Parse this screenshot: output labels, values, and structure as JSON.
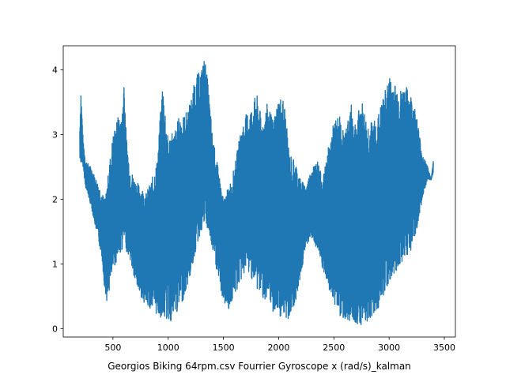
{
  "chart_data": {
    "type": "line",
    "title": "",
    "xlabel": "Georgios Biking 64rpm.csv Fourrier Gyroscope x (rad/s)_kalman",
    "ylabel": "",
    "xlim": [
      50,
      3600
    ],
    "ylim": [
      -0.13,
      4.37
    ],
    "xticks": [
      500,
      1000,
      1500,
      2000,
      2500,
      3000,
      3500
    ],
    "xtick_labels": [
      "500",
      "1000",
      "1500",
      "2000",
      "2500",
      "3000",
      "3500"
    ],
    "yticks": [
      0,
      1,
      2,
      3,
      4
    ],
    "ytick_labels": [
      "0",
      "1",
      "2",
      "3",
      "4"
    ],
    "grid": false,
    "legend": "none",
    "series": [
      {
        "color": "#1f77b4",
        "description": "dense oscillating signal; values sampled as upper envelope and lower envelope",
        "x": [
          200,
          210,
          230,
          250,
          300,
          350,
          400,
          430,
          450,
          500,
          550,
          580,
          600,
          620,
          650,
          700,
          750,
          800,
          850,
          900,
          950,
          1000,
          1030,
          1050,
          1100,
          1150,
          1200,
          1250,
          1300,
          1330,
          1360,
          1400,
          1450,
          1500,
          1550,
          1600,
          1650,
          1700,
          1750,
          1800,
          1850,
          1900,
          1950,
          2000,
          2050,
          2080,
          2100,
          2150,
          2200,
          2250,
          2300,
          2350,
          2400,
          2450,
          2500,
          2550,
          2600,
          2650,
          2700,
          2750,
          2800,
          2850,
          2900,
          2950,
          3000,
          3050,
          3100,
          3150,
          3200,
          3250,
          3300,
          3350,
          3380,
          3400
        ],
        "upper": [
          3.1,
          3.68,
          2.9,
          2.6,
          2.5,
          2.3,
          2.1,
          2.0,
          2.3,
          3.0,
          3.3,
          3.2,
          3.92,
          3.0,
          2.5,
          2.3,
          2.2,
          2.1,
          2.3,
          2.6,
          3.84,
          2.9,
          3.1,
          3.0,
          3.3,
          3.3,
          3.5,
          3.9,
          4.0,
          4.2,
          3.8,
          3.0,
          2.5,
          2.0,
          2.2,
          2.5,
          3.0,
          3.3,
          3.4,
          3.64,
          3.2,
          3.5,
          3.2,
          3.6,
          3.55,
          3.0,
          2.7,
          2.6,
          2.3,
          2.2,
          2.5,
          2.6,
          2.3,
          2.8,
          3.2,
          3.3,
          3.0,
          3.5,
          3.2,
          3.55,
          3.2,
          3.2,
          3.3,
          3.6,
          3.9,
          3.8,
          3.68,
          3.75,
          3.6,
          3.3,
          2.7,
          2.5,
          2.3,
          2.6
        ],
        "lower": [
          2.6,
          2.55,
          2.5,
          2.2,
          1.9,
          1.5,
          1.1,
          0.5,
          0.4,
          0.9,
          1.1,
          1.2,
          1.3,
          1.2,
          1.1,
          0.7,
          0.5,
          0.35,
          0.3,
          0.2,
          0.15,
          0.12,
          0.1,
          0.15,
          0.3,
          0.5,
          0.8,
          1.2,
          1.5,
          1.6,
          1.5,
          1.2,
          0.8,
          0.4,
          0.3,
          0.5,
          0.7,
          0.9,
          0.8,
          0.6,
          0.5,
          0.35,
          0.25,
          0.2,
          0.12,
          0.1,
          0.2,
          0.4,
          0.8,
          1.3,
          1.4,
          1.2,
          0.9,
          0.6,
          0.4,
          0.2,
          0.15,
          0.1,
          0.08,
          0.06,
          0.1,
          0.2,
          0.3,
          0.5,
          0.7,
          0.8,
          1.0,
          1.1,
          1.2,
          1.5,
          2.0,
          2.3,
          2.3,
          2.4
        ]
      }
    ]
  }
}
